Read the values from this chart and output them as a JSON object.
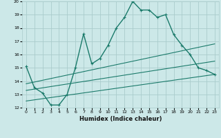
{
  "xlabel": "Humidex (Indice chaleur)",
  "background_color": "#cce8e8",
  "grid_color": "#aacccc",
  "line_color": "#1a7a6a",
  "xlim": [
    -0.5,
    23.5
  ],
  "ylim": [
    12,
    20
  ],
  "xticks": [
    0,
    1,
    2,
    3,
    4,
    5,
    6,
    7,
    8,
    9,
    10,
    11,
    12,
    13,
    14,
    15,
    16,
    17,
    18,
    19,
    20,
    21,
    22,
    23
  ],
  "yticks": [
    12,
    13,
    14,
    15,
    16,
    17,
    18,
    19,
    20
  ],
  "series1_x": [
    0,
    1,
    2,
    3,
    4,
    5,
    6,
    7,
    8,
    9,
    10,
    11,
    12,
    13,
    14,
    15,
    16,
    17,
    18,
    19,
    20,
    21,
    22,
    23
  ],
  "series1_y": [
    15.1,
    13.5,
    13.1,
    12.2,
    12.2,
    13.0,
    15.0,
    17.55,
    15.3,
    15.7,
    16.7,
    18.0,
    18.8,
    20.0,
    19.35,
    19.35,
    18.8,
    19.0,
    17.5,
    16.7,
    16.0,
    15.0,
    14.8,
    14.5
  ],
  "series2_x": [
    0,
    23
  ],
  "series2_y": [
    13.8,
    16.8
  ],
  "series3_x": [
    0,
    23
  ],
  "series3_y": [
    13.3,
    15.5
  ],
  "series4_x": [
    0,
    23
  ],
  "series4_y": [
    12.5,
    14.5
  ]
}
